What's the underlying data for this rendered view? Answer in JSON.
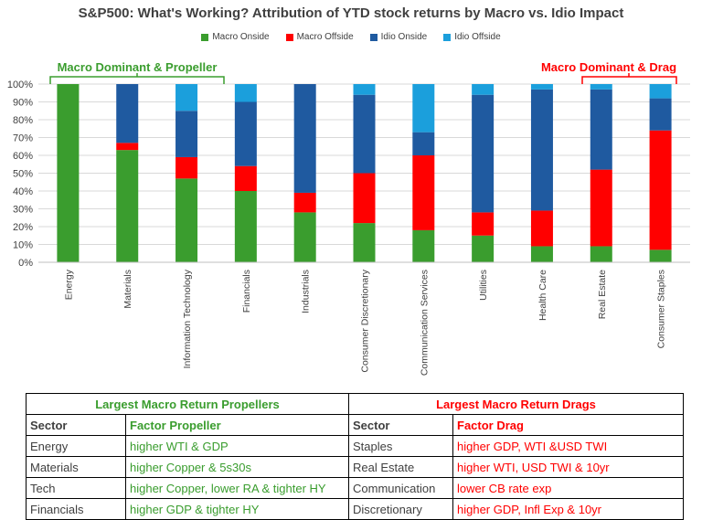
{
  "chart_data": {
    "type": "bar",
    "stacked": true,
    "title": "S&P500: What's Working? Attribution of YTD stock returns by Macro vs. Idio Impact",
    "categories": [
      "Energy",
      "Materials",
      "Information Technology",
      "Financials",
      "Industrials",
      "Consumer Discretionary",
      "Communication Services",
      "Utilities",
      "Health Care",
      "Real Estate",
      "Consumer Staples"
    ],
    "series": [
      {
        "name": "Macro Onside",
        "color": "#3a9d2e",
        "values": [
          100,
          63,
          47,
          40,
          28,
          22,
          18,
          15,
          9,
          9,
          7
        ]
      },
      {
        "name": "Macro Offside",
        "color": "#ff0000",
        "values": [
          0,
          4,
          12,
          14,
          11,
          28,
          42,
          13,
          20,
          43,
          67
        ]
      },
      {
        "name": "Idio Onside",
        "color": "#1f5aa0",
        "values": [
          0,
          33,
          26,
          36,
          61,
          44,
          13,
          66,
          68,
          45,
          18
        ]
      },
      {
        "name": "Idio Offside",
        "color": "#1b9fdc",
        "values": [
          0,
          0,
          15,
          10,
          0,
          6,
          27,
          6,
          3,
          3,
          8
        ]
      }
    ],
    "ylim": [
      0,
      100
    ],
    "yticks": [
      "0%",
      "10%",
      "20%",
      "30%",
      "40%",
      "50%",
      "60%",
      "70%",
      "80%",
      "90%",
      "100%"
    ],
    "grid": true,
    "legend_position": "top",
    "annotations": [
      {
        "text": "Macro Dominant & Propeller",
        "color": "#3a9d2e"
      },
      {
        "text": "Macro Dominant & Drag",
        "color": "#ff0000"
      }
    ]
  },
  "table": {
    "propellers_title": "Largest Macro Return Propellers",
    "drags_title": "Largest Macro Return Drags",
    "headers": {
      "sector": "Sector",
      "factor_propeller": "Factor Propeller",
      "sector2": "Sector",
      "factor_drag": "Factor Drag"
    },
    "rows": [
      {
        "sector": "Energy",
        "propeller": "higher WTI & GDP",
        "sector2": "Staples",
        "drag": "higher GDP, WTI &USD TWI"
      },
      {
        "sector": "Materials",
        "propeller": "higher Copper & 5s30s",
        "sector2": "Real Estate",
        "drag": "higher WTI, USD TWI & 10yr"
      },
      {
        "sector": "Tech",
        "propeller": "higher Copper, lower RA & tighter HY",
        "sector2": "Communication",
        "drag": "lower CB rate exp"
      },
      {
        "sector": "Financials",
        "propeller": "higher GDP & tighter HY",
        "sector2": "Discretionary",
        "drag": "higher GDP, Infl Exp & 10yr"
      }
    ]
  }
}
